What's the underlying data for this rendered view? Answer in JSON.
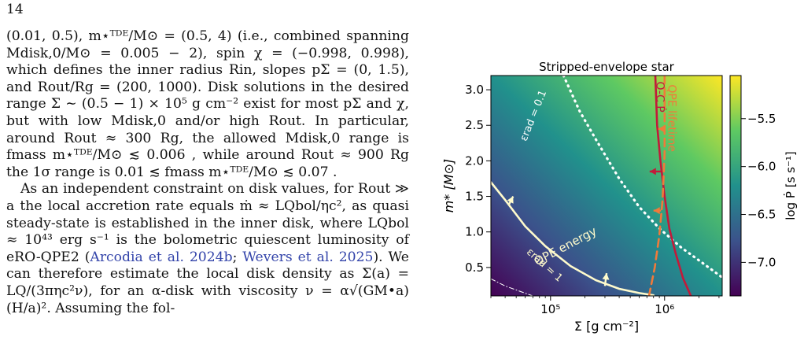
{
  "page": {
    "number": "14"
  },
  "text": {
    "p1": "(0.01, 0.5), m⋆ᵀᴰᴱ/M⊙ = (0.5, 4) (i.e., combined spanning Mdisk,0/M⊙ = 0.005 − 2), spin χ = (−0.998, 0.998), which defines the inner radius Rin, slopes pΣ = (0, 1.5), and Rout/Rg = (200, 1000). Disk solutions in the desired range Σ ∼ (0.5 − 1) × 10⁵ g cm⁻² exist for most pΣ and χ, but with low Mdisk,0 and/or high Rout. In particular, around Rout ≈ 300 Rg, the allowed Mdisk,0 range is fmass m⋆ᵀᴰᴱ/M⊙ ≲ 0.006 , while around Rout ≈ 900 Rg the 1σ range is 0.01 ≲ fmass m⋆ᵀᴰᴱ/M⊙ ≲ 0.07 .",
    "p2a": "As an independent constraint on disk values, for Rout ≫ a the local accretion rate equals ṁ ≈ LQbol/ηc², as quasi steady-state is established in the inner disk, where LQbol ≈ 10⁴³ erg s⁻¹ is the bolometric quiescent luminosity of eRO-QPE2 (",
    "cite1": "Arcodia et al. 2024b",
    "p2b": "; ",
    "cite2": "Wevers et al. 2025",
    "p2c": "). We can therefore estimate the local disk density as Σ(a) = LQ/(3πηc²ν), for an α-disk with viscosity ν = α√(GM•a)(H/a)². Assuming the fol-"
  },
  "chart_data": {
    "type": "heatmap",
    "title": "Stripped-envelope star",
    "xlabel": "Σ [g cm⁻²]",
    "ylabel": "m* [M⊙]",
    "xscale": "log",
    "xlim": [
      30000,
      3200000
    ],
    "ylim": [
      0.1,
      3.2
    ],
    "x_ticks": [
      {
        "value": 100000,
        "label": "10⁵"
      },
      {
        "value": 1000000,
        "label": "10⁶"
      }
    ],
    "y_ticks": [
      {
        "value": 0.5,
        "label": "0.5"
      },
      {
        "value": 1.0,
        "label": "1.0"
      },
      {
        "value": 1.5,
        "label": "1.5"
      },
      {
        "value": 2.0,
        "label": "2.0"
      },
      {
        "value": 2.5,
        "label": "2.5"
      },
      {
        "value": 3.0,
        "label": "3.0"
      }
    ],
    "colorbar": {
      "label": "log Ṗ [s s⁻¹]",
      "range": [
        -7.35,
        -5.05
      ],
      "ticks": [
        {
          "value": -5.5,
          "label": "−5.5"
        },
        {
          "value": -6.0,
          "label": "−6.0"
        },
        {
          "value": -6.5,
          "label": "−6.5"
        },
        {
          "value": -7.0,
          "label": "−7.0"
        }
      ],
      "colormap": [
        "#440154",
        "#3b528b",
        "#21918c",
        "#5ec962",
        "#fde725"
      ]
    },
    "curves": [
      {
        "label": "QPE energy",
        "sublabel": "εrad = 1",
        "color": "#fffbcc",
        "style": "solid",
        "x": [
          30000,
          40000,
          60000,
          90000,
          150000,
          250000,
          400000,
          600000,
          800000
        ],
        "y": [
          1.7,
          1.45,
          1.08,
          0.8,
          0.52,
          0.32,
          0.2,
          0.14,
          0.11
        ]
      },
      {
        "label": "εrad = 0.1",
        "color": "#ffffff",
        "style": "dotted",
        "x": [
          130000,
          180000,
          250000,
          400000,
          600000,
          900000,
          1400000,
          2000000,
          3200000
        ],
        "y": [
          3.2,
          2.7,
          2.3,
          1.75,
          1.35,
          1.05,
          0.78,
          0.6,
          0.36
        ]
      },
      {
        "label": "",
        "color": "#ffffff",
        "style": "dashdot",
        "x": [
          30000,
          40000,
          55000,
          70000
        ],
        "y": [
          0.34,
          0.24,
          0.16,
          0.1
        ]
      },
      {
        "label": "O-C Ṗ",
        "color": "#c21a3a",
        "style": "solid",
        "x": [
          830000,
          860000,
          920000,
          1000000,
          1100000,
          1250000,
          1450000,
          1700000
        ],
        "y": [
          3.2,
          2.5,
          2.0,
          1.5,
          1.05,
          0.7,
          0.35,
          0.1
        ]
      },
      {
        "label": "QPE lifetime",
        "color": "#f07a3a",
        "style": "dashed",
        "x": [
          1000000,
          1000000,
          960000,
          900000,
          820000,
          730000
        ],
        "y": [
          3.2,
          2.1,
          1.45,
          0.95,
          0.5,
          0.1
        ]
      }
    ]
  }
}
